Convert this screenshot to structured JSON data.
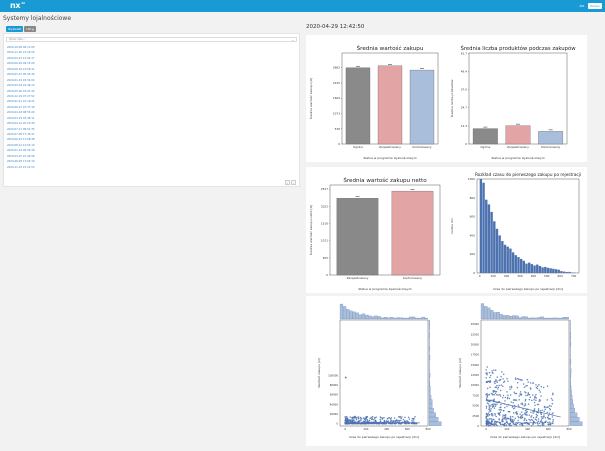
{
  "app": {
    "logo": "nx",
    "logo_sup": "42",
    "user": "XM",
    "help_label": "Pomoc",
    "page_title": "Systemy lojalnościowe"
  },
  "controls": {
    "btn1": "Wyświetl",
    "btn2": "Ukryj",
    "search_placeholder": "Wpisz datę...",
    "chevron": "⌄",
    "prev": "‹",
    "next": "›"
  },
  "dates": [
    "2020-10-09 06:11:05",
    "2020-11-05 21:14:55",
    "2020-04-13 13:42:17",
    "2020-06-29 09:15:20",
    "2020-08-19 12:09:11",
    "2020-03-07 05:55:40",
    "2020-01-19 18:32:04",
    "2020-09-18 22:40:13",
    "2020-05-06 16:01:32",
    "2020-12-19 07:27:52",
    "2020-02-21 10:19:21",
    "2020-06-27 22:37:16",
    "2020-04-18 08:53:29",
    "2020-03-19 03:45:11",
    "2020-04-14 20:23:30",
    "2020-07-17 06:51:35",
    "2020-07-09 17:35:47",
    "2020-06-23 11:08:48",
    "2020-08-12 14:52:10",
    "2020-01-14 09:22:30",
    "2020-03-07 21:44:58",
    "2020-08-28 13:02:19",
    "2020-11-23 15:21:53"
  ],
  "timestamp": "2020-04-29 12:42:50",
  "chart_data": [
    {
      "type": "bar",
      "title": "Średnia wartość zakupu",
      "xlabel": "Status w programie lojalnościowym",
      "ylabel": "Średnia wartość zakupu [zł]",
      "categories": [
        "Ogólne",
        "Zarejestrowany",
        "Kontrolowany"
      ],
      "values": [
        2682,
        2750,
        2600
      ],
      "ylim": [
        0,
        3200
      ],
      "yticks": [
        "0",
        "536",
        "1073",
        "1609",
        "2145",
        "2682"
      ],
      "colors": [
        "#8c8c8c",
        "#e2a4a4",
        "#a9bedb"
      ]
    },
    {
      "type": "bar",
      "title": "Średnia liczba produktów podczas zakupów",
      "xlabel": "Status w programie lojalnościowym",
      "ylabel": "Średnia liczba produktów",
      "categories": [
        "Ogólne",
        "Zarejestrowany",
        "Kontrolowany"
      ],
      "values": [
        10.5,
        12.5,
        8.6
      ],
      "ylim": [
        0,
        62
      ],
      "yticks": [
        "0",
        "12.3",
        "24.7",
        "37.0",
        "49.4",
        "61.7"
      ],
      "colors": [
        "#8c8c8c",
        "#e2a4a4",
        "#a9bedb"
      ]
    },
    {
      "type": "bar",
      "title": "Średnia wartość zakupu netto",
      "xlabel": "Status w programie lojalnościowym",
      "ylabel": "Średnia wartość zakupu netto [zł]",
      "categories": [
        "Zarejestrowany",
        "Kontrolowany"
      ],
      "values": [
        2260,
        2470
      ],
      "ylim": [
        0,
        2650
      ],
      "yticks": [
        "0",
        "505",
        "1011",
        "1516",
        "2022",
        "2527"
      ],
      "colors": [
        "#8c8c8c",
        "#e2a4a4"
      ]
    },
    {
      "type": "bar",
      "title": "Rozkład czasu do pierwszego zakupu po rejestracji",
      "xlabel": "Czas do pierwszego zakupu po rejestracji [dni]",
      "ylabel": "Liczba dni",
      "x": [
        0,
        20,
        40,
        60,
        80,
        100,
        120,
        140,
        160,
        180,
        200,
        220,
        240,
        260,
        280,
        300,
        320,
        340,
        360,
        380,
        400,
        420,
        440,
        460,
        480,
        500,
        520,
        540,
        560,
        580,
        600,
        620,
        640,
        660,
        680,
        700
      ],
      "values": [
        1000,
        960,
        780,
        730,
        650,
        550,
        470,
        400,
        340,
        300,
        280,
        260,
        220,
        190,
        170,
        150,
        130,
        100,
        110,
        95,
        80,
        90,
        75,
        60,
        65,
        55,
        50,
        45,
        40,
        35,
        20,
        15,
        10,
        12,
        5,
        3
      ],
      "ylim": [
        0,
        1000
      ],
      "yticks": [
        "0",
        "200",
        "400",
        "600",
        "800",
        "1000"
      ],
      "xticks": [
        "0",
        "100",
        "200",
        "300",
        "400",
        "500",
        "600",
        "700"
      ],
      "colors": [
        "#4c72b0"
      ]
    },
    {
      "type": "scatter",
      "title": "",
      "xlabel": "Czas do pierwszego zakupu po rejestracji [dni]",
      "ylabel": "Wartość zakupu [zł]",
      "xlim": [
        -50,
        800
      ],
      "ylim": [
        -5000,
        215000
      ],
      "yticks": [
        "0",
        "20000",
        "40000",
        "60000",
        "80000",
        "100000",
        "200000"
      ],
      "xticks": [
        "0",
        "200",
        "400",
        "600",
        "800"
      ],
      "outlier": [
        5,
        195000
      ],
      "colors": [
        "#4c72b0"
      ]
    },
    {
      "type": "scatter",
      "title": "",
      "xlabel": "Czas do pierwszego zakupu po rejestracji [dni]",
      "ylabel": "Wartość zakupu [zł]",
      "xlim": [
        -50,
        800
      ],
      "ylim": [
        0,
        26000
      ],
      "yticks": [
        "0",
        "2500",
        "5000",
        "7500",
        "10000",
        "12500",
        "15000",
        "17500",
        "20000",
        "22500",
        "25000"
      ],
      "xticks": [
        "0",
        "200",
        "400",
        "600",
        "800"
      ],
      "colors": [
        "#4c72b0"
      ]
    }
  ]
}
